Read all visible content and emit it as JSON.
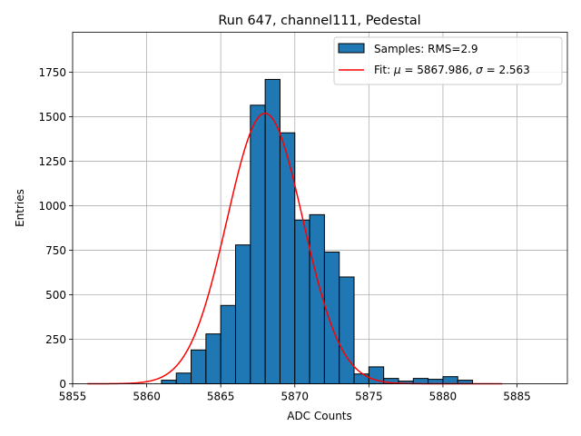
{
  "chart_data": {
    "type": "bar",
    "title": "Run 647, channel111, Pedestal",
    "xlabel": "ADC Counts",
    "ylabel": "Entries",
    "xlim": [
      5855.0,
      5888.4
    ],
    "ylim": [
      0,
      1975
    ],
    "xticks": [
      5855,
      5860,
      5865,
      5870,
      5875,
      5880,
      5885
    ],
    "yticks": [
      0,
      250,
      500,
      750,
      1000,
      1250,
      1500,
      1750
    ],
    "grid": true,
    "legend_position": "top-right",
    "histogram": {
      "name": "Samples: RMS=2.9",
      "color": "#1f77b4",
      "edge_color": "#000000",
      "bin_width": 1.0,
      "bin_left_edges": [
        5861,
        5862,
        5863,
        5864,
        5865,
        5866,
        5867,
        5868,
        5869,
        5870,
        5871,
        5872,
        5873,
        5874,
        5875,
        5876,
        5877,
        5878,
        5879,
        5880,
        5881
      ],
      "values": [
        20,
        60,
        190,
        280,
        440,
        780,
        1565,
        1710,
        1410,
        920,
        950,
        740,
        600,
        55,
        95,
        30,
        15,
        30,
        25,
        40,
        20
      ]
    },
    "fit": {
      "name_prefix": "Fit: ",
      "mu_symbol": "μ",
      "mu_text": " = 5867.986, ",
      "sigma_symbol": "σ",
      "sigma_text": " = 2.563",
      "color": "#ff0000",
      "mu": 5867.986,
      "sigma": 2.563,
      "amplitude": 1520,
      "x_range": [
        5856,
        5884
      ]
    }
  }
}
